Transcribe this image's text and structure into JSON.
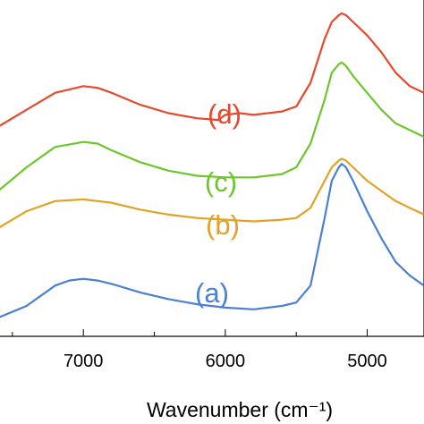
{
  "chart_data": {
    "type": "line",
    "title": "",
    "xlabel": "Wavenumber (cm⁻¹)",
    "ylabel": "",
    "x_reversed": true,
    "xlim": [
      7600,
      4600
    ],
    "ylim": [
      0,
      1
    ],
    "xticks": [
      7000,
      6000,
      5000
    ],
    "xtick_labels": [
      "7000",
      "6000",
      "5000"
    ],
    "grid": false,
    "legend": "none",
    "series": [
      {
        "name": "(a)",
        "color": "#4a7fd6",
        "x": [
          7600,
          7400,
          7200,
          7100,
          7000,
          6900,
          6800,
          6600,
          6400,
          6200,
          6000,
          5800,
          5600,
          5500,
          5400,
          5300,
          5250,
          5200,
          5180,
          5150,
          5100,
          5000,
          4900,
          4800,
          4700,
          4600
        ],
        "y": [
          0.055,
          0.09,
          0.15,
          0.165,
          0.17,
          0.165,
          0.155,
          0.13,
          0.11,
          0.095,
          0.085,
          0.08,
          0.09,
          0.1,
          0.15,
          0.35,
          0.46,
          0.5,
          0.51,
          0.5,
          0.46,
          0.37,
          0.29,
          0.22,
          0.18,
          0.15
        ]
      },
      {
        "name": "(b)",
        "color": "#e3a126",
        "x": [
          7600,
          7400,
          7200,
          7000,
          6800,
          6600,
          6400,
          6200,
          6000,
          5800,
          5600,
          5500,
          5400,
          5300,
          5250,
          5200,
          5180,
          5150,
          5100,
          5000,
          4900,
          4800,
          4700,
          4600
        ],
        "y": [
          0.32,
          0.37,
          0.4,
          0.405,
          0.395,
          0.375,
          0.36,
          0.35,
          0.345,
          0.34,
          0.345,
          0.35,
          0.38,
          0.46,
          0.5,
          0.52,
          0.525,
          0.52,
          0.5,
          0.46,
          0.43,
          0.4,
          0.38,
          0.36
        ]
      },
      {
        "name": "(c)",
        "color": "#6cc62c",
        "x": [
          7600,
          7400,
          7200,
          7000,
          6900,
          6800,
          6600,
          6400,
          6200,
          6000,
          5800,
          5600,
          5500,
          5400,
          5300,
          5250,
          5200,
          5180,
          5150,
          5100,
          5000,
          4900,
          4800,
          4700,
          4600
        ],
        "y": [
          0.43,
          0.5,
          0.56,
          0.575,
          0.57,
          0.55,
          0.515,
          0.49,
          0.475,
          0.47,
          0.47,
          0.48,
          0.5,
          0.57,
          0.7,
          0.78,
          0.805,
          0.81,
          0.8,
          0.77,
          0.72,
          0.67,
          0.63,
          0.61,
          0.59
        ]
      },
      {
        "name": "(d)",
        "color": "#e8482c",
        "x": [
          7600,
          7400,
          7200,
          7000,
          6900,
          6800,
          6600,
          6400,
          6200,
          6050,
          6000,
          5900,
          5800,
          5600,
          5500,
          5400,
          5300,
          5250,
          5200,
          5180,
          5150,
          5100,
          5000,
          4900,
          4800,
          4700,
          4600
        ],
        "y": [
          0.62,
          0.67,
          0.72,
          0.74,
          0.735,
          0.72,
          0.685,
          0.66,
          0.645,
          0.64,
          0.655,
          0.66,
          0.655,
          0.665,
          0.68,
          0.75,
          0.88,
          0.93,
          0.95,
          0.955,
          0.95,
          0.93,
          0.89,
          0.84,
          0.78,
          0.74,
          0.72
        ]
      }
    ]
  }
}
